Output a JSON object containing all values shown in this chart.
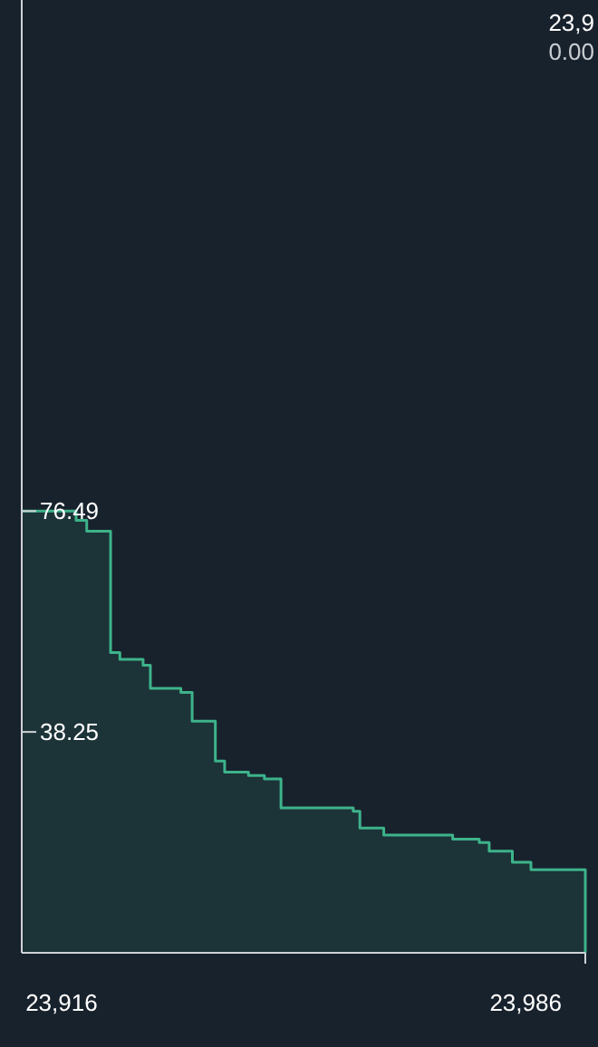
{
  "chart_data": {
    "type": "step",
    "x": [
      23910,
      23918.2,
      23919.8,
      23923.4,
      23924.8,
      23928.3,
      23929.4,
      23934,
      23935.7,
      23939.2,
      23940.6,
      23944.2,
      23946.6,
      23949.1,
      23960,
      23961,
      23964.6,
      23975,
      23979,
      23980.5,
      23984,
      23986.8,
      23995
    ],
    "series": [
      {
        "color": "#3db38a",
        "values": [
          76.5,
          74.9,
          73.0,
          52.0,
          50.8,
          49.8,
          45.8,
          45.1,
          40.1,
          33.2,
          31.3,
          30.7,
          30.1,
          25.1,
          24.5,
          21.6,
          20.4,
          19.7,
          19.1,
          17.6,
          15.7,
          14.4,
          0
        ]
      }
    ],
    "xlim": [
      23910,
      23995
    ],
    "xticks": [
      {
        "value": 23916,
        "label": "23,916"
      },
      {
        "value": 23986,
        "label": "23,986"
      }
    ],
    "ylim": [
      0,
      165
    ],
    "yticks": [
      38.25,
      76.49
    ],
    "grid": false,
    "annotations": [
      "23,9",
      "0.00"
    ]
  }
}
